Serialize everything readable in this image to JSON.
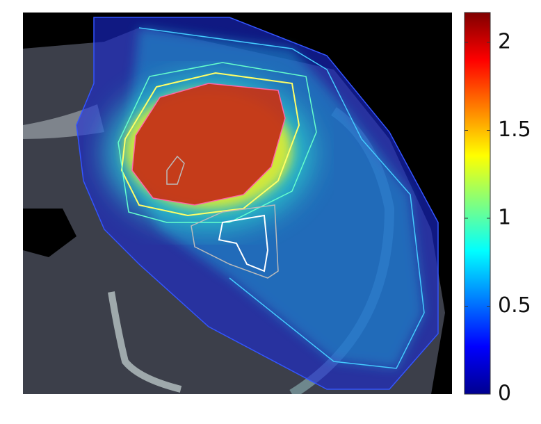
{
  "colorbar": {
    "lim": [
      0,
      2.17
    ],
    "ticks": [
      0,
      0.5,
      1,
      1.5,
      2
    ]
  }
}
